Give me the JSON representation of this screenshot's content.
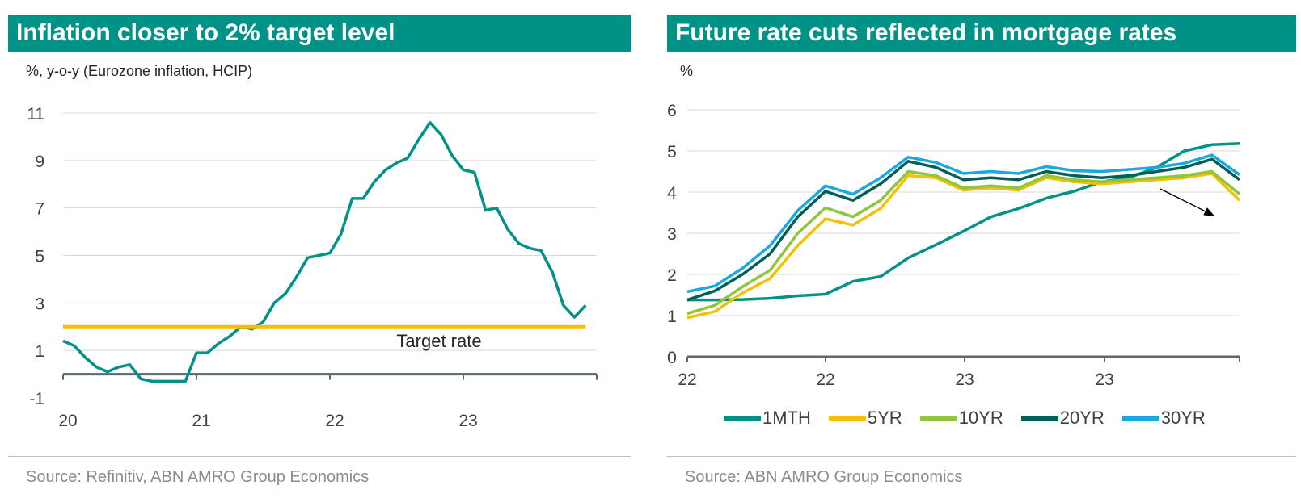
{
  "left": {
    "title": "Inflation closer to 2% target level",
    "unit": "%, y-o-y (Eurozone inflation, HCIP)",
    "source": "Source: Refinitiv, ABN AMRO Group Economics",
    "chart_data": {
      "type": "line",
      "ylim": [
        -1,
        11
      ],
      "y_ticks": [
        "-1",
        "1",
        "3",
        "5",
        "7",
        "9",
        "11"
      ],
      "x_ticks": [
        "20",
        "21",
        "22",
        "23"
      ],
      "grid": true,
      "series": [
        {
          "color": "#009286",
          "x": [
            2020.0,
            2020.083,
            2020.167,
            2020.25,
            2020.333,
            2020.417,
            2020.5,
            2020.583,
            2020.667,
            2020.75,
            2020.833,
            2020.917,
            2021.0,
            2021.083,
            2021.167,
            2021.25,
            2021.333,
            2021.417,
            2021.5,
            2021.583,
            2021.667,
            2021.75,
            2021.833,
            2021.917,
            2022.0,
            2022.083,
            2022.167,
            2022.25,
            2022.333,
            2022.417,
            2022.5,
            2022.583,
            2022.667,
            2022.75,
            2022.833,
            2022.917,
            2023.0,
            2023.083,
            2023.167,
            2023.25,
            2023.333,
            2023.417,
            2023.5,
            2023.583,
            2023.667,
            2023.75,
            2023.833,
            2023.917
          ],
          "values": [
            1.4,
            1.2,
            0.7,
            0.3,
            0.1,
            0.3,
            0.4,
            -0.2,
            -0.3,
            -0.3,
            -0.3,
            -0.3,
            0.9,
            0.9,
            1.3,
            1.6,
            2.0,
            1.9,
            2.2,
            3.0,
            3.4,
            4.1,
            4.9,
            5.0,
            5.1,
            5.9,
            7.4,
            7.4,
            8.1,
            8.6,
            8.9,
            9.1,
            9.9,
            10.6,
            10.1,
            9.2,
            8.6,
            8.5,
            6.9,
            7.0,
            6.1,
            5.5,
            5.3,
            5.2,
            4.3,
            2.9,
            2.4,
            2.9
          ]
        },
        {
          "name": "Target rate",
          "color": "#f5c000",
          "x": [
            2020.0,
            2023.917
          ],
          "values": [
            2.0,
            2.0
          ]
        }
      ],
      "annotations": [
        {
          "text": "Target rate"
        }
      ]
    }
  },
  "right": {
    "title": "Future rate cuts reflected in mortgage rates",
    "unit": "%",
    "source": "Source: ABN AMRO Group Economics",
    "chart_data": {
      "type": "line",
      "ylim": [
        0,
        6
      ],
      "y_ticks": [
        "0",
        "1",
        "2",
        "3",
        "4",
        "5",
        "6"
      ],
      "x_ticks": [
        "22",
        "22",
        "23",
        "23"
      ],
      "grid": true,
      "legend": "bottom",
      "x": [
        2022.0,
        2022.1,
        2022.2,
        2022.3,
        2022.4,
        2022.5,
        2022.6,
        2022.7,
        2022.8,
        2022.9,
        2023.0,
        2023.1,
        2023.2,
        2023.3,
        2023.4,
        2023.5,
        2023.6,
        2023.7,
        2023.8,
        2023.9,
        2024.0
      ],
      "series": [
        {
          "name": "1MTH",
          "color": "#009286",
          "values": [
            1.38,
            1.38,
            1.39,
            1.42,
            1.48,
            1.52,
            1.83,
            1.95,
            2.4,
            2.72,
            3.05,
            3.4,
            3.6,
            3.85,
            4.02,
            4.25,
            4.35,
            4.6,
            5.0,
            5.15,
            5.18
          ]
        },
        {
          "name": "5YR",
          "color": "#f5c000",
          "values": [
            0.95,
            1.1,
            1.55,
            1.9,
            2.7,
            3.35,
            3.2,
            3.6,
            4.4,
            4.35,
            4.05,
            4.1,
            4.05,
            4.35,
            4.25,
            4.2,
            4.25,
            4.3,
            4.35,
            4.45,
            3.8
          ]
        },
        {
          "name": "10YR",
          "color": "#8dc63f",
          "values": [
            1.05,
            1.25,
            1.7,
            2.1,
            3.0,
            3.62,
            3.4,
            3.8,
            4.5,
            4.4,
            4.1,
            4.15,
            4.1,
            4.4,
            4.3,
            4.25,
            4.3,
            4.35,
            4.4,
            4.5,
            3.95
          ]
        },
        {
          "name": "20YR",
          "color": "#005f57",
          "values": [
            1.38,
            1.6,
            2.0,
            2.5,
            3.4,
            4.02,
            3.8,
            4.2,
            4.75,
            4.6,
            4.3,
            4.35,
            4.3,
            4.5,
            4.4,
            4.35,
            4.4,
            4.5,
            4.6,
            4.8,
            4.3
          ]
        },
        {
          "name": "30YR",
          "color": "#19a8e0",
          "values": [
            1.58,
            1.72,
            2.15,
            2.7,
            3.55,
            4.15,
            3.95,
            4.35,
            4.85,
            4.72,
            4.45,
            4.5,
            4.45,
            4.62,
            4.52,
            4.5,
            4.55,
            4.6,
            4.7,
            4.9,
            4.42
          ]
        }
      ]
    }
  }
}
